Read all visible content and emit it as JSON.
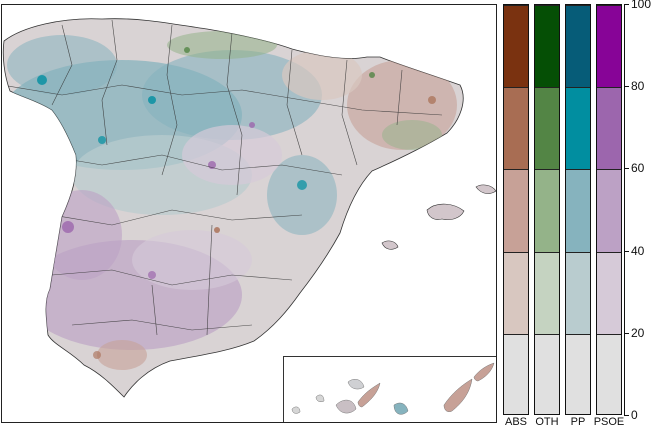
{
  "legend": {
    "categories": [
      {
        "label": "ABS",
        "colors": [
          "#e0e0e0",
          "#d8c7c0",
          "#c7a197",
          "#a86d53",
          "#7a3210"
        ]
      },
      {
        "label": "OTH",
        "colors": [
          "#e0e0e0",
          "#c5d3c1",
          "#94b389",
          "#538545",
          "#054f05"
        ]
      },
      {
        "label": "PP",
        "colors": [
          "#e0e0e0",
          "#b9cccf",
          "#86b3be",
          "#018ea0",
          "#065c78"
        ]
      },
      {
        "label": "PSOE",
        "colors": [
          "#e0e0e0",
          "#d6cad8",
          "#bca1c5",
          "#9c66ad",
          "#870497"
        ]
      }
    ],
    "axis": {
      "min": 0,
      "max": 100,
      "ticks": [
        "0",
        "20",
        "40",
        "60",
        "80",
        "100"
      ]
    }
  },
  "map": {
    "base_color": "#d6d6d6",
    "border_color": "#333333"
  }
}
